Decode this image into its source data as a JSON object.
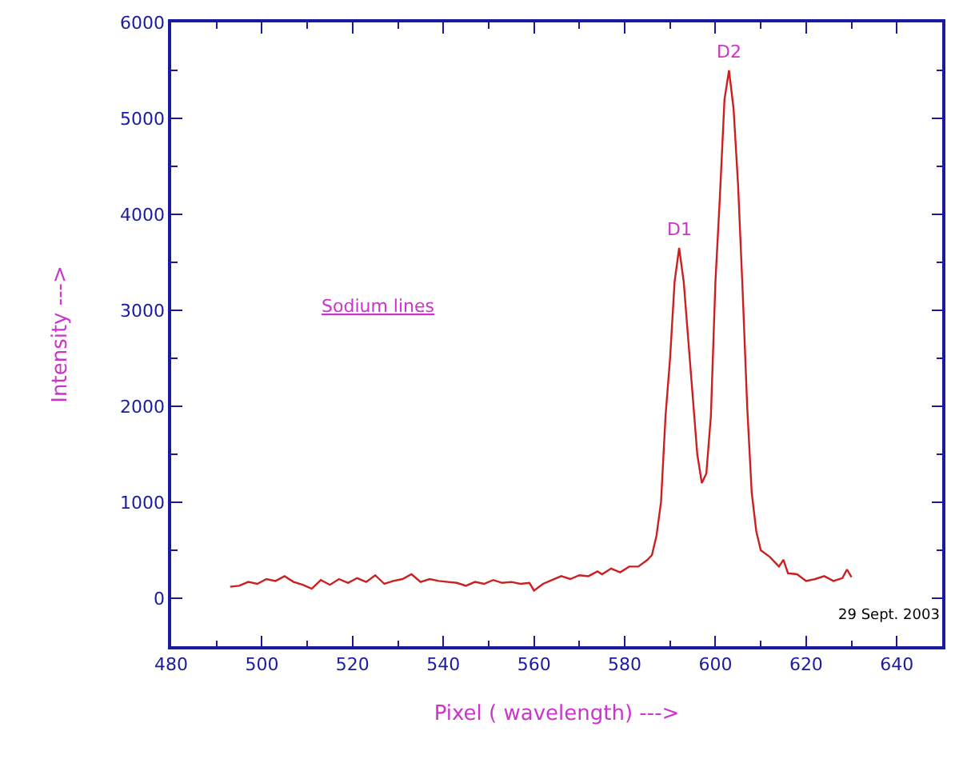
{
  "chart_data": {
    "type": "line",
    "xlabel": "Pixel ( wavelength) --->",
    "ylabel": "Intensity --->",
    "x": [
      493,
      495,
      497,
      499,
      501,
      503,
      505,
      507,
      509,
      511,
      513,
      515,
      517,
      519,
      521,
      523,
      525,
      527,
      529,
      531,
      533,
      535,
      537,
      539,
      541,
      543,
      545,
      547,
      549,
      551,
      553,
      555,
      557,
      559,
      560,
      562,
      564,
      566,
      568,
      570,
      572,
      574,
      575,
      577,
      579,
      581,
      583,
      585,
      586,
      587,
      588,
      589,
      590,
      591,
      592,
      593,
      594,
      595,
      596,
      597,
      598,
      599,
      600,
      601,
      602,
      603,
      604,
      605,
      606,
      607,
      608,
      609,
      610,
      612,
      614,
      615,
      616,
      618,
      620,
      622,
      624,
      626,
      628,
      629,
      630
    ],
    "series": [
      {
        "color": "#cc2020",
        "values": [
          120,
          130,
          170,
          150,
          200,
          180,
          230,
          170,
          140,
          100,
          190,
          140,
          200,
          160,
          210,
          170,
          240,
          150,
          180,
          200,
          250,
          170,
          200,
          180,
          170,
          160,
          130,
          170,
          150,
          190,
          160,
          170,
          150,
          160,
          80,
          150,
          190,
          230,
          200,
          240,
          230,
          280,
          250,
          310,
          270,
          330,
          330,
          400,
          450,
          650,
          1000,
          1900,
          2500,
          3300,
          3650,
          3300,
          2700,
          2100,
          1500,
          1200,
          1300,
          1900,
          3300,
          4200,
          5200,
          5500,
          5100,
          4300,
          3200,
          2000,
          1100,
          700,
          500,
          430,
          330,
          400,
          260,
          250,
          180,
          200,
          230,
          180,
          210,
          300,
          220
        ]
      }
    ],
    "xlim": [
      480,
      650
    ],
    "xticks": [
      480,
      500,
      520,
      540,
      560,
      580,
      600,
      620,
      640
    ],
    "ylim": [
      -500,
      6000
    ],
    "yticks": [
      0,
      1000,
      2000,
      3000,
      4000,
      5000,
      6000
    ],
    "grid": false,
    "marker": "none",
    "line_style": "solid",
    "annotations": [
      "D1",
      "D2",
      "Sodium lines",
      "29 Sept. 2003"
    ]
  }
}
